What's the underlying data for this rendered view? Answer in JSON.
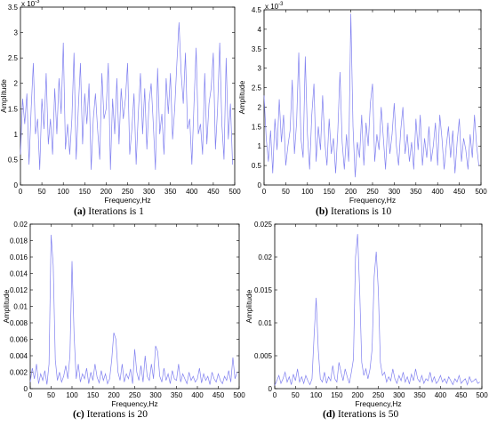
{
  "chart_data": [
    {
      "type": "line",
      "caption_tag": "(a)",
      "caption_text": " Iterations is 1",
      "xlabel": "Frequency,Hz",
      "ylabel": "Amplitude",
      "y_exponent_label": "x 10",
      "y_exponent_power": "-3",
      "xlim": [
        0,
        500
      ],
      "ylim": [
        0,
        3.5
      ],
      "xticks": [
        0,
        50,
        100,
        150,
        200,
        250,
        300,
        350,
        400,
        450,
        500
      ],
      "yticks": [
        0,
        0.5,
        1,
        1.5,
        2,
        2.5,
        3,
        3.5
      ],
      "color": "#8080f0",
      "series": [
        {
          "x": [
            0,
            5,
            10,
            15,
            20,
            25,
            30,
            35,
            40,
            45,
            50,
            55,
            60,
            65,
            70,
            75,
            80,
            85,
            90,
            95,
            100,
            105,
            110,
            115,
            120,
            125,
            130,
            135,
            140,
            145,
            150,
            155,
            160,
            165,
            170,
            175,
            180,
            185,
            190,
            195,
            200,
            205,
            210,
            215,
            220,
            225,
            230,
            235,
            240,
            245,
            250,
            255,
            260,
            265,
            270,
            275,
            280,
            285,
            290,
            295,
            300,
            305,
            310,
            315,
            320,
            325,
            330,
            335,
            340,
            345,
            350,
            355,
            360,
            365,
            370,
            375,
            380,
            385,
            390,
            395,
            400,
            405,
            410,
            415,
            420,
            425,
            430,
            435,
            440,
            445,
            450,
            455,
            460,
            465,
            470,
            475,
            480,
            485,
            490,
            495
          ],
          "values": [
            0.6,
            1.7,
            1.2,
            1.8,
            0.4,
            1.5,
            2.4,
            1.0,
            1.3,
            0.3,
            1.7,
            1.1,
            2.2,
            0.8,
            1.3,
            0.6,
            1.9,
            1.0,
            2.1,
            1.4,
            2.8,
            0.7,
            1.2,
            0.6,
            1.3,
            2.6,
            0.5,
            1.5,
            2.4,
            0.8,
            1.8,
            1.2,
            2.0,
            0.3,
            1.3,
            1.8,
            1.1,
            0.5,
            2.2,
            1.3,
            1.5,
            2.4,
            0.3,
            1.7,
            1.0,
            2.1,
            0.8,
            1.9,
            1.3,
            1.7,
            2.4,
            0.6,
            1.1,
            1.8,
            0.4,
            1.4,
            2.2,
            1.0,
            1.9,
            0.7,
            1.6,
            2.0,
            1.2,
            0.3,
            2.3,
            1.0,
            1.4,
            0.6,
            2.1,
            1.4,
            2.2,
            0.9,
            1.5,
            2.4,
            3.2,
            2.2,
            1.6,
            2.6,
            1.1,
            1.3,
            0.4,
            1.6,
            2.7,
            1.0,
            1.2,
            0.6,
            2.2,
            0.8,
            1.6,
            1.9,
            2.6,
            0.7,
            1.5,
            2.8,
            1.2,
            0.5,
            2.5,
            0.9,
            1.6,
            0.4
          ]
        }
      ]
    },
    {
      "type": "line",
      "caption_tag": "(b)",
      "caption_text": " Iterations is 10",
      "xlabel": "Frequency,Hz",
      "ylabel": "Amplitude",
      "y_exponent_label": "x 10",
      "y_exponent_power": "-3",
      "xlim": [
        0,
        500
      ],
      "ylim": [
        0,
        4.5
      ],
      "xticks": [
        0,
        50,
        100,
        150,
        200,
        250,
        300,
        350,
        400,
        450,
        500
      ],
      "yticks": [
        0,
        0.5,
        1,
        1.5,
        2,
        2.5,
        3,
        3.5,
        4,
        4.5
      ],
      "color": "#8080f0",
      "series": [
        {
          "x": [
            0,
            5,
            10,
            15,
            20,
            25,
            30,
            35,
            40,
            45,
            50,
            55,
            60,
            65,
            70,
            75,
            80,
            85,
            90,
            95,
            100,
            105,
            110,
            115,
            120,
            125,
            130,
            135,
            140,
            145,
            150,
            155,
            160,
            165,
            170,
            175,
            180,
            185,
            190,
            195,
            200,
            205,
            210,
            215,
            220,
            225,
            230,
            235,
            240,
            245,
            250,
            255,
            260,
            265,
            270,
            275,
            280,
            285,
            290,
            295,
            300,
            305,
            310,
            315,
            320,
            325,
            330,
            335,
            340,
            345,
            350,
            355,
            360,
            365,
            370,
            375,
            380,
            385,
            390,
            395,
            400,
            405,
            410,
            415,
            420,
            425,
            430,
            435,
            440,
            445,
            450,
            455,
            460,
            465,
            470,
            475,
            480,
            485,
            490,
            495
          ],
          "values": [
            2.3,
            1.2,
            0.6,
            1.4,
            0.3,
            1.7,
            0.9,
            2.2,
            1.1,
            1.8,
            0.5,
            1.0,
            1.4,
            2.7,
            0.8,
            1.6,
            3.4,
            1.2,
            0.7,
            3.3,
            1.3,
            0.4,
            1.8,
            2.6,
            0.6,
            1.5,
            0.9,
            2.3,
            1.1,
            0.5,
            1.7,
            0.8,
            1.2,
            0.3,
            1.4,
            2.9,
            1.1,
            0.4,
            1.3,
            0.6,
            4.4,
            1.5,
            0.2,
            1.1,
            0.7,
            1.8,
            0.5,
            1.6,
            1.0,
            2.1,
            2.6,
            0.6,
            1.3,
            0.9,
            2.0,
            1.2,
            0.4,
            1.6,
            0.8,
            1.3,
            2.1,
            1.0,
            0.5,
            1.4,
            2.0,
            0.8,
            1.3,
            0.6,
            1.1,
            0.4,
            1.7,
            0.9,
            1.8,
            0.5,
            1.2,
            0.7,
            1.5,
            0.6,
            1.0,
            1.6,
            0.5,
            1.8,
            1.2,
            0.4,
            1.0,
            1.5,
            0.7,
            1.4,
            0.3,
            1.1,
            1.7,
            0.6,
            1.2,
            0.9,
            0.4,
            1.3,
            0.7,
            1.8,
            1.0,
            0.5
          ]
        }
      ]
    },
    {
      "type": "line",
      "caption_tag": "(c)",
      "caption_text": " Iterations is 20",
      "xlabel": "Frequency,Hz",
      "ylabel": "Amplitude",
      "xlim": [
        0,
        500
      ],
      "ylim": [
        0,
        0.02
      ],
      "xticks": [
        0,
        50,
        100,
        150,
        200,
        250,
        300,
        350,
        400,
        450,
        500
      ],
      "yticks": [
        0,
        0.002,
        0.004,
        0.006,
        0.008,
        0.01,
        0.012,
        0.014,
        0.016,
        0.018,
        0.02
      ],
      "color": "#8080f0",
      "series": [
        {
          "x": [
            0,
            5,
            10,
            15,
            20,
            25,
            30,
            35,
            40,
            45,
            50,
            55,
            60,
            65,
            70,
            75,
            80,
            85,
            90,
            95,
            100,
            105,
            110,
            115,
            120,
            125,
            130,
            135,
            140,
            145,
            150,
            155,
            160,
            165,
            170,
            175,
            180,
            185,
            190,
            195,
            200,
            205,
            210,
            215,
            220,
            225,
            230,
            235,
            240,
            245,
            250,
            255,
            260,
            265,
            270,
            275,
            280,
            285,
            290,
            295,
            300,
            305,
            310,
            315,
            320,
            325,
            330,
            335,
            340,
            345,
            350,
            355,
            360,
            365,
            370,
            375,
            380,
            385,
            390,
            395,
            400,
            405,
            410,
            415,
            420,
            425,
            430,
            435,
            440,
            445,
            450,
            455,
            460,
            465,
            470,
            475,
            480,
            485,
            490,
            495
          ],
          "values": [
            0.0008,
            0.0025,
            0.0012,
            0.003,
            0.0006,
            0.0018,
            0.001,
            0.0022,
            0.0005,
            0.003,
            0.0187,
            0.015,
            0.0035,
            0.001,
            0.002,
            0.0008,
            0.0015,
            0.0028,
            0.0012,
            0.004,
            0.0155,
            0.0065,
            0.0012,
            0.003,
            0.0008,
            0.0018,
            0.0012,
            0.0025,
            0.0006,
            0.002,
            0.001,
            0.003,
            0.0014,
            0.0007,
            0.0022,
            0.001,
            0.0018,
            0.0006,
            0.0012,
            0.0035,
            0.0068,
            0.006,
            0.002,
            0.001,
            0.003,
            0.0008,
            0.0018,
            0.0012,
            0.0024,
            0.0006,
            0.0048,
            0.002,
            0.001,
            0.0028,
            0.0008,
            0.004,
            0.0015,
            0.001,
            0.003,
            0.0012,
            0.0052,
            0.0045,
            0.0015,
            0.0008,
            0.0025,
            0.001,
            0.0018,
            0.0006,
            0.0022,
            0.0012,
            0.001,
            0.003,
            0.0008,
            0.0018,
            0.0012,
            0.0006,
            0.002,
            0.001,
            0.0015,
            0.0008,
            0.0012,
            0.0025,
            0.0007,
            0.0018,
            0.001,
            0.0015,
            0.0005,
            0.002,
            0.0012,
            0.0008,
            0.0018,
            0.001,
            0.0006,
            0.0015,
            0.001,
            0.0022,
            0.0008,
            0.0038,
            0.0012,
            0.002
          ]
        }
      ]
    },
    {
      "type": "line",
      "caption_tag": "(d)",
      "caption_text": " Iterations is 50",
      "xlabel": "Frequency,Hz",
      "ylabel": "Amplitude",
      "xlim": [
        0,
        500
      ],
      "ylim": [
        0,
        0.025
      ],
      "xticks": [
        0,
        50,
        100,
        150,
        200,
        250,
        300,
        350,
        400,
        450,
        500
      ],
      "yticks": [
        0,
        0.005,
        0.01,
        0.015,
        0.02,
        0.025
      ],
      "color": "#8080f0",
      "series": [
        {
          "x": [
            0,
            5,
            10,
            15,
            20,
            25,
            30,
            35,
            40,
            45,
            50,
            55,
            60,
            65,
            70,
            75,
            80,
            85,
            90,
            95,
            100,
            105,
            110,
            115,
            120,
            125,
            130,
            135,
            140,
            145,
            150,
            155,
            160,
            165,
            170,
            175,
            180,
            185,
            190,
            195,
            200,
            205,
            210,
            215,
            220,
            225,
            230,
            235,
            240,
            245,
            250,
            255,
            260,
            265,
            270,
            275,
            280,
            285,
            290,
            295,
            300,
            305,
            310,
            315,
            320,
            325,
            330,
            335,
            340,
            345,
            350,
            355,
            360,
            365,
            370,
            375,
            380,
            385,
            390,
            395,
            400,
            405,
            410,
            415,
            420,
            425,
            430,
            435,
            440,
            445,
            450,
            455,
            460,
            465,
            470,
            475,
            480,
            485,
            490,
            495
          ],
          "values": [
            0.0005,
            0.0012,
            0.002,
            0.0008,
            0.0015,
            0.0025,
            0.001,
            0.0018,
            0.0006,
            0.0022,
            0.0012,
            0.003,
            0.001,
            0.0018,
            0.0008,
            0.002,
            0.0012,
            0.0006,
            0.0015,
            0.008,
            0.0138,
            0.006,
            0.0015,
            0.001,
            0.0025,
            0.0008,
            0.0018,
            0.0012,
            0.0035,
            0.0015,
            0.001,
            0.004,
            0.0025,
            0.0012,
            0.003,
            0.0018,
            0.0008,
            0.0025,
            0.0045,
            0.02,
            0.0235,
            0.015,
            0.004,
            0.002,
            0.003,
            0.0015,
            0.003,
            0.006,
            0.017,
            0.0208,
            0.015,
            0.004,
            0.002,
            0.0025,
            0.001,
            0.0018,
            0.0012,
            0.003,
            0.0015,
            0.0008,
            0.002,
            0.0012,
            0.0025,
            0.001,
            0.0018,
            0.0007,
            0.0022,
            0.0012,
            0.003,
            0.0015,
            0.001,
            0.002,
            0.0008,
            0.0015,
            0.0012,
            0.0025,
            0.001,
            0.0018,
            0.0008,
            0.0012,
            0.002,
            0.001,
            0.0015,
            0.0008,
            0.0018,
            0.0012,
            0.0006,
            0.0015,
            0.001,
            0.002,
            0.0008,
            0.0012,
            0.0015,
            0.0006,
            0.0018,
            0.001,
            0.0012,
            0.0015,
            0.0008,
            0.001
          ]
        }
      ]
    }
  ]
}
